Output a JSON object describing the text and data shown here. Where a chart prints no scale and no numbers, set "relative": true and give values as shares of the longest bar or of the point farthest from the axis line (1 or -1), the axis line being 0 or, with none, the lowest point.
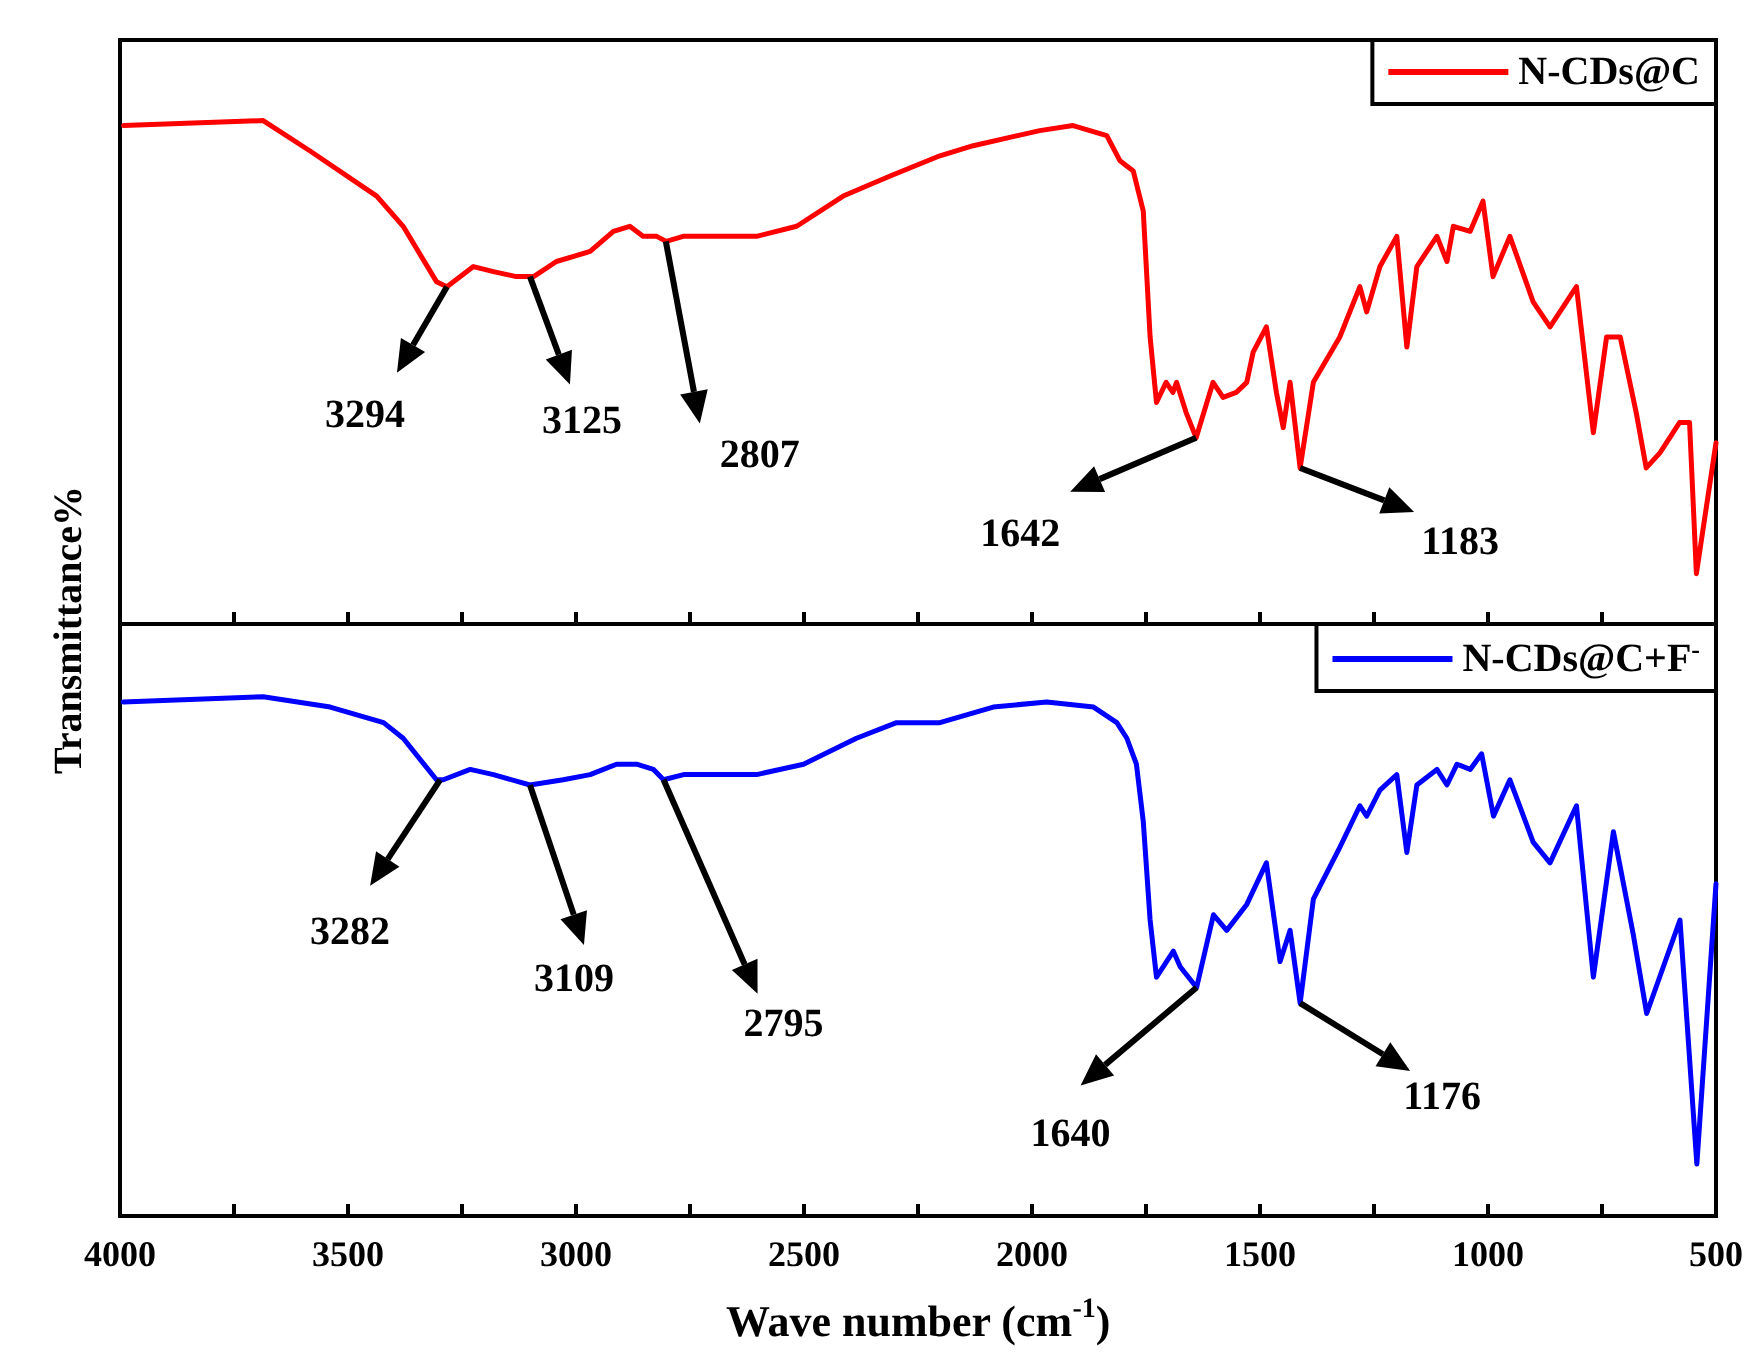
{
  "chart_data": [
    {
      "type": "line",
      "relative": true,
      "ylabel": "Transmittance%",
      "xlim": [
        4000,
        500
      ],
      "tick_labels": false,
      "legend": "top right",
      "line_style": "solid",
      "grid": false,
      "xticks": [
        4000,
        {
          "value": 3750,
          "label": null
        },
        3500,
        {
          "value": 3250,
          "label": null
        },
        3000,
        {
          "value": 2750,
          "label": null
        },
        2500,
        {
          "value": 2250,
          "label": null
        },
        2000,
        {
          "value": 1750,
          "label": null
        },
        1500,
        {
          "value": 1250,
          "label": null
        },
        1000,
        {
          "value": 750,
          "label": null
        },
        500
      ],
      "series": [
        {
          "name": "N-CDs@C",
          "color": "#ff0000",
          "x": [
            3992,
            3686,
            3584,
            3437,
            3379,
            3306,
            3283,
            3225,
            3181,
            3131,
            3093,
            3043,
            2969,
            2918,
            2882,
            2853,
            2823,
            2802,
            2765,
            2721,
            2604,
            2516,
            2414,
            2311,
            2202,
            2129,
            1983,
            1910,
            1836,
            1807,
            1778,
            1756,
            1741,
            1727,
            1706,
            1691,
            1683,
            1662,
            1640,
            1603,
            1581,
            1552,
            1529,
            1515,
            1486,
            1464,
            1449,
            1434,
            1412,
            1383,
            1325,
            1281,
            1266,
            1237,
            1200,
            1178,
            1156,
            1112,
            1090,
            1076,
            1039,
            1011,
            989,
            952,
            901,
            864,
            806,
            769,
            740,
            710,
            675,
            653,
            623,
            580,
            558,
            543,
            500
          ],
          "values": [
            0.99,
            1.0,
            0.94,
            0.85,
            0.79,
            0.68,
            0.67,
            0.71,
            0.7,
            0.69,
            0.69,
            0.72,
            0.74,
            0.78,
            0.79,
            0.77,
            0.77,
            0.76,
            0.77,
            0.77,
            0.77,
            0.79,
            0.85,
            0.89,
            0.93,
            0.95,
            0.98,
            0.99,
            0.97,
            0.92,
            0.9,
            0.82,
            0.57,
            0.44,
            0.48,
            0.46,
            0.48,
            0.42,
            0.37,
            0.48,
            0.45,
            0.46,
            0.48,
            0.54,
            0.59,
            0.46,
            0.39,
            0.48,
            0.31,
            0.48,
            0.57,
            0.67,
            0.62,
            0.71,
            0.77,
            0.55,
            0.71,
            0.77,
            0.72,
            0.79,
            0.78,
            0.84,
            0.69,
            0.77,
            0.64,
            0.59,
            0.67,
            0.38,
            0.57,
            0.57,
            0.42,
            0.31,
            0.34,
            0.4,
            0.4,
            0.1,
            0.36
          ]
        }
      ],
      "annotations": [
        {
          "text": "3294",
          "x": 3283,
          "y": 0.67
        },
        {
          "text": "3125",
          "x": 3101,
          "y": 0.69
        },
        {
          "text": "2807",
          "x": 2803,
          "y": 0.76
        },
        {
          "text": "1642",
          "x": 1640,
          "y": 0.37
        },
        {
          "text": "1183",
          "x": 1412,
          "y": 0.31
        }
      ]
    },
    {
      "type": "line",
      "relative": true,
      "xlabel": "Wave number (cm$^{-1}$)",
      "xlim": [
        4000,
        500
      ],
      "tick_labels": "x",
      "legend": "top right",
      "line_style": "solid",
      "grid": false,
      "xticks": [
        4000,
        {
          "value": 3750,
          "label": null
        },
        3500,
        {
          "value": 3250,
          "label": null
        },
        3000,
        {
          "value": 2750,
          "label": null
        },
        2500,
        {
          "value": 2250,
          "label": null
        },
        2000,
        {
          "value": 1750,
          "label": null
        },
        1500,
        {
          "value": 1250,
          "label": null
        },
        1000,
        {
          "value": 750,
          "label": null
        },
        500
      ],
      "series": [
        {
          "name": "N-CDs@C+F$^{-}$",
          "color": "#0000ff",
          "x": [
            3993,
            3686,
            3539,
            3422,
            3379,
            3306,
            3291,
            3232,
            3181,
            3101,
            3028,
            2969,
            2911,
            2867,
            2830,
            2808,
            2764,
            2706,
            2604,
            2501,
            2385,
            2297,
            2202,
            2085,
            1968,
            1865,
            1814,
            1792,
            1771,
            1756,
            1741,
            1727,
            1690,
            1675,
            1639,
            1602,
            1573,
            1529,
            1486,
            1456,
            1434,
            1412,
            1383,
            1325,
            1281,
            1266,
            1237,
            1200,
            1178,
            1156,
            1112,
            1090,
            1068,
            1039,
            1014,
            988,
            952,
            901,
            864,
            806,
            769,
            725,
            681,
            652,
            579,
            542,
            500
          ],
          "values": [
            0.99,
            1.0,
            0.98,
            0.95,
            0.92,
            0.84,
            0.84,
            0.86,
            0.85,
            0.83,
            0.84,
            0.85,
            0.87,
            0.87,
            0.86,
            0.84,
            0.85,
            0.85,
            0.85,
            0.87,
            0.92,
            0.95,
            0.95,
            0.98,
            0.99,
            0.98,
            0.95,
            0.92,
            0.87,
            0.76,
            0.57,
            0.46,
            0.51,
            0.48,
            0.44,
            0.58,
            0.55,
            0.6,
            0.68,
            0.49,
            0.55,
            0.41,
            0.61,
            0.71,
            0.79,
            0.77,
            0.82,
            0.85,
            0.7,
            0.83,
            0.86,
            0.83,
            0.87,
            0.86,
            0.89,
            0.77,
            0.84,
            0.72,
            0.68,
            0.79,
            0.46,
            0.74,
            0.54,
            0.39,
            0.57,
            0.1,
            0.64
          ]
        }
      ],
      "annotations": [
        {
          "text": "3282",
          "x": 3298,
          "y": 0.84
        },
        {
          "text": "3109",
          "x": 3101,
          "y": 0.83
        },
        {
          "text": "2795",
          "x": 2808,
          "y": 0.84
        },
        {
          "text": "1640",
          "x": 1639,
          "y": 0.44
        },
        {
          "text": "1176",
          "x": 1412,
          "y": 0.41
        }
      ]
    }
  ]
}
